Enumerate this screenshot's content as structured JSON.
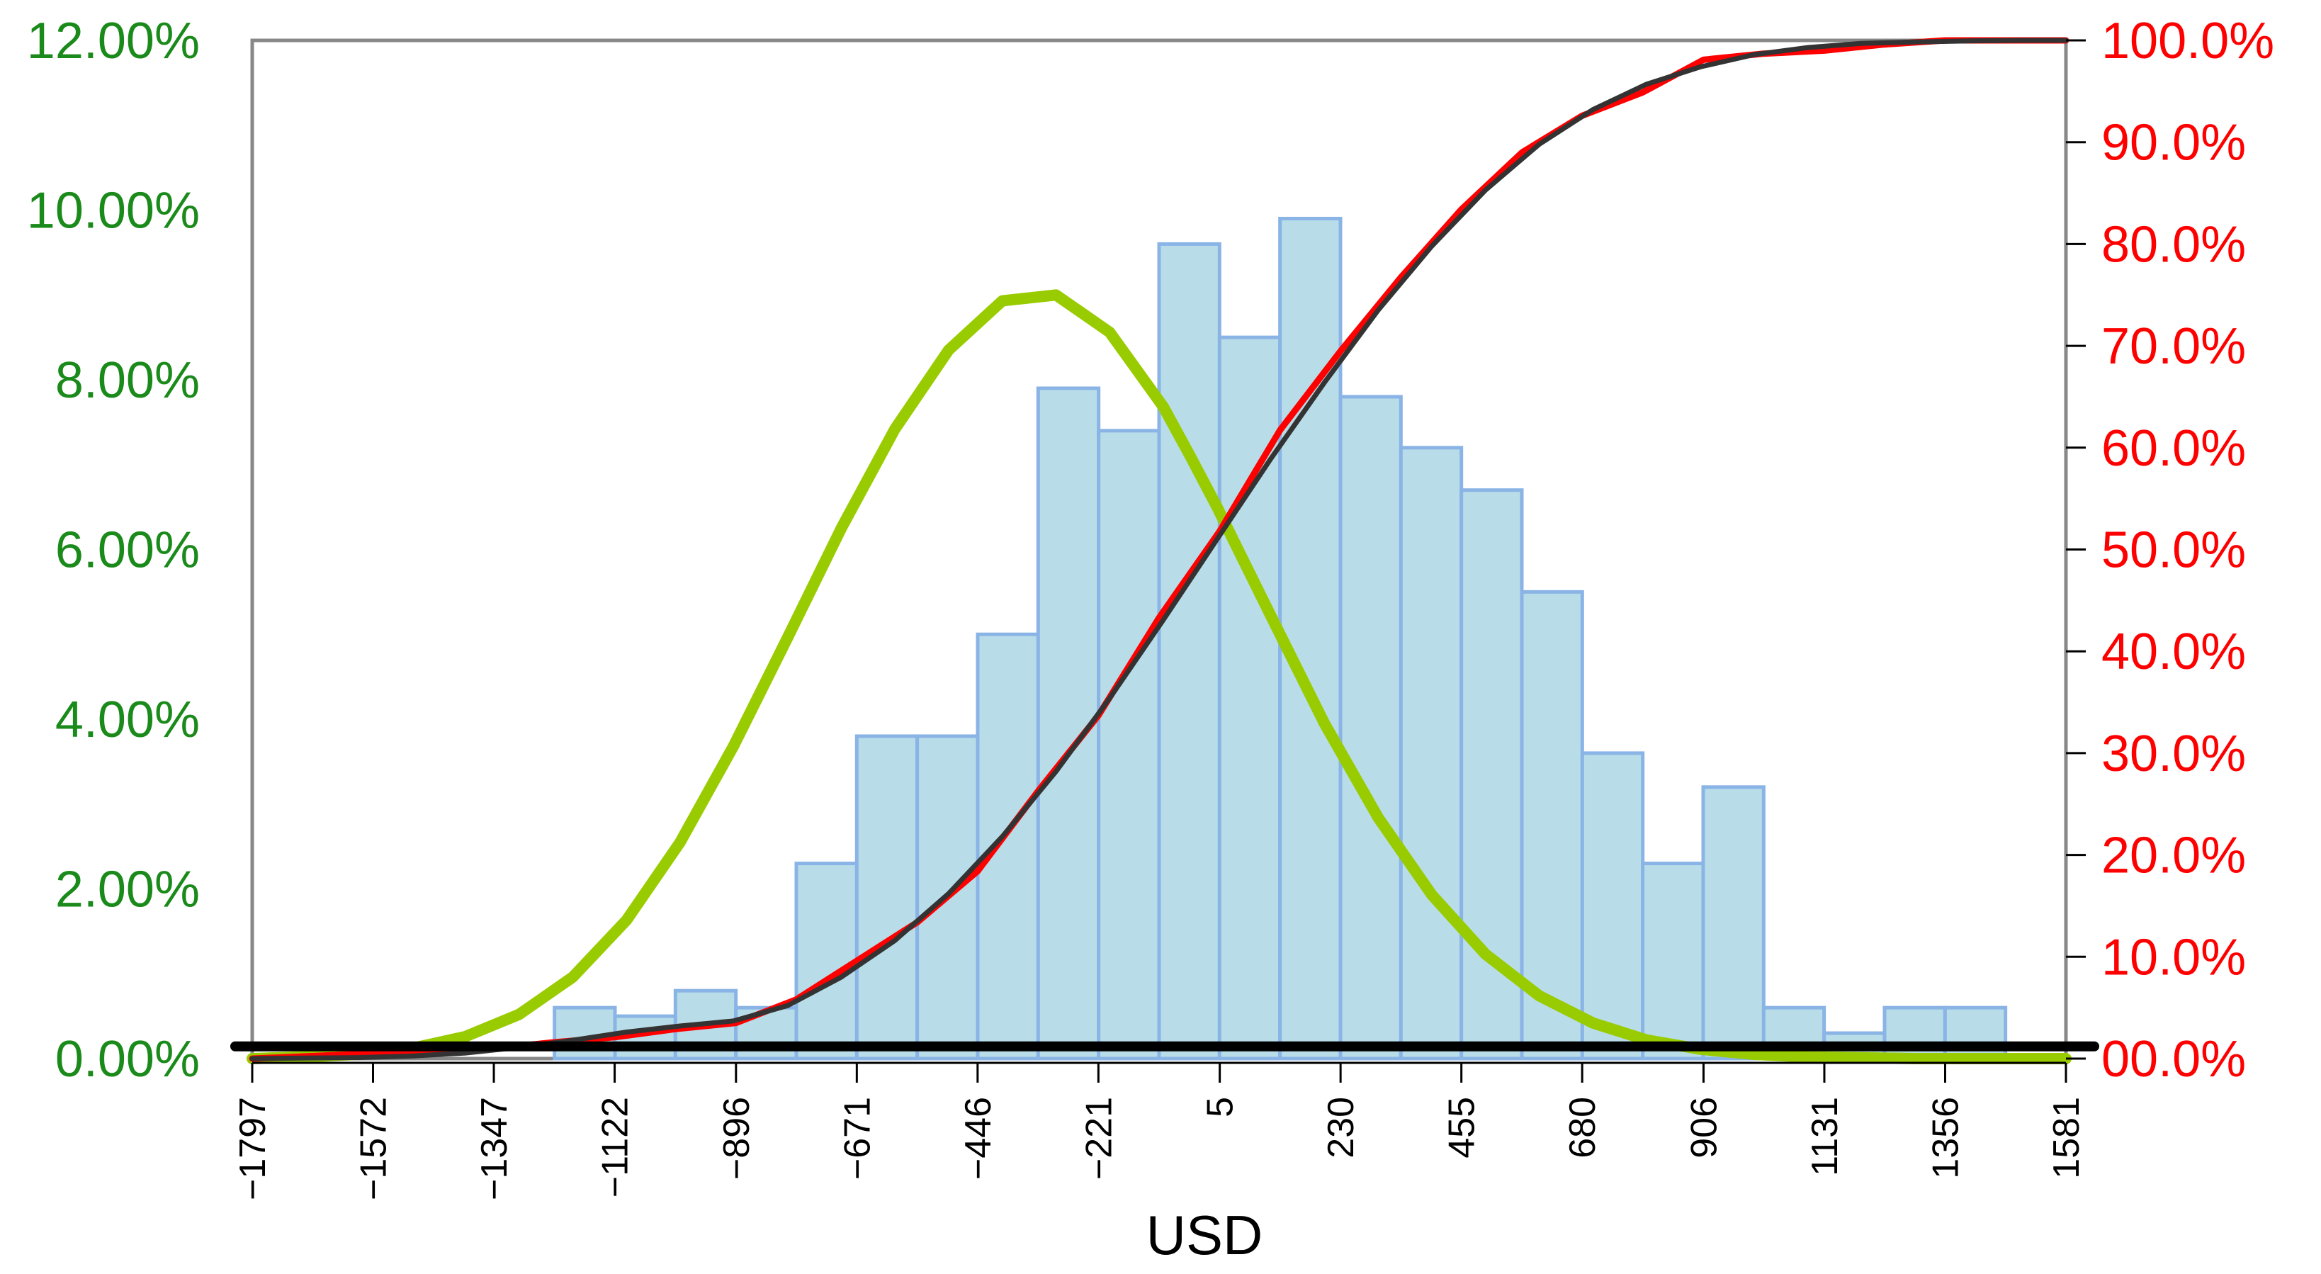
{
  "chart_data": {
    "type": "bar",
    "title": "",
    "xlabel": "USD",
    "x_tick_labels": [
      "−1797",
      "−1572",
      "−1347",
      "−1122",
      "−896",
      "−671",
      "−446",
      "−221",
      "5",
      "230",
      "455",
      "680",
      "906",
      "1131",
      "1356",
      "1581"
    ],
    "x_ticks": [
      -1797,
      -1572,
      -1347,
      -1122,
      -896,
      -671,
      -446,
      -221,
      5,
      230,
      455,
      680,
      906,
      1131,
      1356,
      1581
    ],
    "xlim": [
      -1797,
      1581
    ],
    "y_left": {
      "tick_labels": [
        "0.00%",
        "2.00%",
        "4.00%",
        "6.00%",
        "8.00%",
        "10.00%",
        "12.00%"
      ],
      "ticks": [
        0,
        2,
        4,
        6,
        8,
        10,
        12
      ],
      "ylim": [
        0,
        12
      ],
      "color": "#1a8a1a"
    },
    "y_right": {
      "tick_labels": [
        "00.0%",
        "10.0%",
        "20.0%",
        "30.0%",
        "40.0%",
        "50.0%",
        "60.0%",
        "70.0%",
        "80.0%",
        "90.0%",
        "100.0%"
      ],
      "ticks": [
        0,
        10,
        20,
        30,
        40,
        50,
        60,
        70,
        80,
        90,
        100
      ],
      "ylim": [
        0,
        100
      ],
      "color": "#ff0000"
    },
    "histogram": {
      "bin_width": 112.6,
      "bin_starts": [
        -1797,
        -1684.4,
        -1571.8,
        -1459.2,
        -1346.6,
        -1234,
        -1121.4,
        -1008.8,
        -896.2,
        -783.6,
        -671,
        -558.4,
        -445.8,
        -333.2,
        -220.6,
        -108,
        4.6,
        117.2,
        229.8,
        342.4,
        455,
        567.6,
        680.2,
        792.8,
        905.4,
        1018,
        1130.6,
        1243.2,
        1355.8,
        1468.4
      ],
      "values": [
        0.0,
        0.0,
        0.0,
        0.0,
        0.0,
        0.6,
        0.5,
        0.8,
        0.6,
        2.3,
        3.8,
        3.8,
        5.0,
        7.9,
        7.4,
        9.6,
        8.5,
        9.9,
        7.8,
        7.2,
        6.7,
        5.5,
        3.6,
        2.3,
        3.2,
        0.6,
        0.3,
        0.6,
        0.6,
        0.0
      ],
      "fill": "#b8dde8",
      "stroke": "#8ab4e6"
    },
    "series": [
      {
        "type": "line",
        "axis": "left",
        "color": "#99cc00",
        "x": [
          -1797,
          -1700,
          -1600,
          -1500,
          -1400,
          -1300,
          -1200,
          -1100,
          -1000,
          -900,
          -800,
          -700,
          -600,
          -500,
          -400,
          -300,
          -200,
          -100,
          -50,
          0,
          50,
          100,
          200,
          300,
          400,
          500,
          600,
          700,
          800,
          900,
          1000,
          1100,
          1200,
          1300,
          1400,
          1500,
          1581
        ],
        "y": [
          0.0,
          0.02,
          0.05,
          0.12,
          0.26,
          0.52,
          0.96,
          1.63,
          2.55,
          3.69,
          4.96,
          6.25,
          7.42,
          8.35,
          8.93,
          9.0,
          8.56,
          7.68,
          7.1,
          6.5,
          5.86,
          5.22,
          3.95,
          2.84,
          1.93,
          1.23,
          0.74,
          0.42,
          0.22,
          0.11,
          0.05,
          0.02,
          0.01,
          0.0,
          0.0,
          0.0,
          0.0
        ]
      },
      {
        "type": "line",
        "axis": "right",
        "color": "#ff0000",
        "x": [
          -1797,
          -1572,
          -1347,
          -1234,
          -1122,
          -1009,
          -896,
          -784,
          -671,
          -558,
          -446,
          -333,
          -221,
          -108,
          5,
          117,
          230,
          342,
          455,
          568,
          680,
          793,
          906,
          1018,
          1131,
          1243,
          1356,
          1468,
          1581
        ],
        "y": [
          0.0,
          0.5,
          1.0,
          1.6,
          2.1,
          2.9,
          3.5,
          5.8,
          9.6,
          13.4,
          18.4,
          26.3,
          33.7,
          43.3,
          51.8,
          61.7,
          69.5,
          76.7,
          83.4,
          89.0,
          92.6,
          94.9,
          98.1,
          98.7,
          99.0,
          99.6,
          100.0,
          100.0,
          100.0
        ]
      },
      {
        "type": "line",
        "axis": "right",
        "color": "#333333",
        "x": [
          -1797,
          -1700,
          -1600,
          -1500,
          -1400,
          -1300,
          -1200,
          -1100,
          -1000,
          -900,
          -800,
          -700,
          -600,
          -500,
          -400,
          -300,
          -200,
          -100,
          0,
          100,
          200,
          300,
          400,
          500,
          600,
          700,
          800,
          900,
          1000,
          1100,
          1200,
          1300,
          1400,
          1500,
          1581
        ],
        "y": [
          0.0,
          0.05,
          0.1,
          0.25,
          0.55,
          1.1,
          1.8,
          2.6,
          3.2,
          3.7,
          5.2,
          8.0,
          11.6,
          16.2,
          21.8,
          28.2,
          35.4,
          43.1,
          51.0,
          58.9,
          66.4,
          73.5,
          79.8,
          85.3,
          89.8,
          93.2,
          95.7,
          97.4,
          98.6,
          99.3,
          99.7,
          99.85,
          99.95,
          100.0,
          100.0
        ]
      },
      {
        "type": "line",
        "axis": "right",
        "color": "#000000",
        "x": [
          -1797,
          1581
        ],
        "y": [
          1.2,
          1.2
        ]
      }
    ],
    "grid": false
  }
}
